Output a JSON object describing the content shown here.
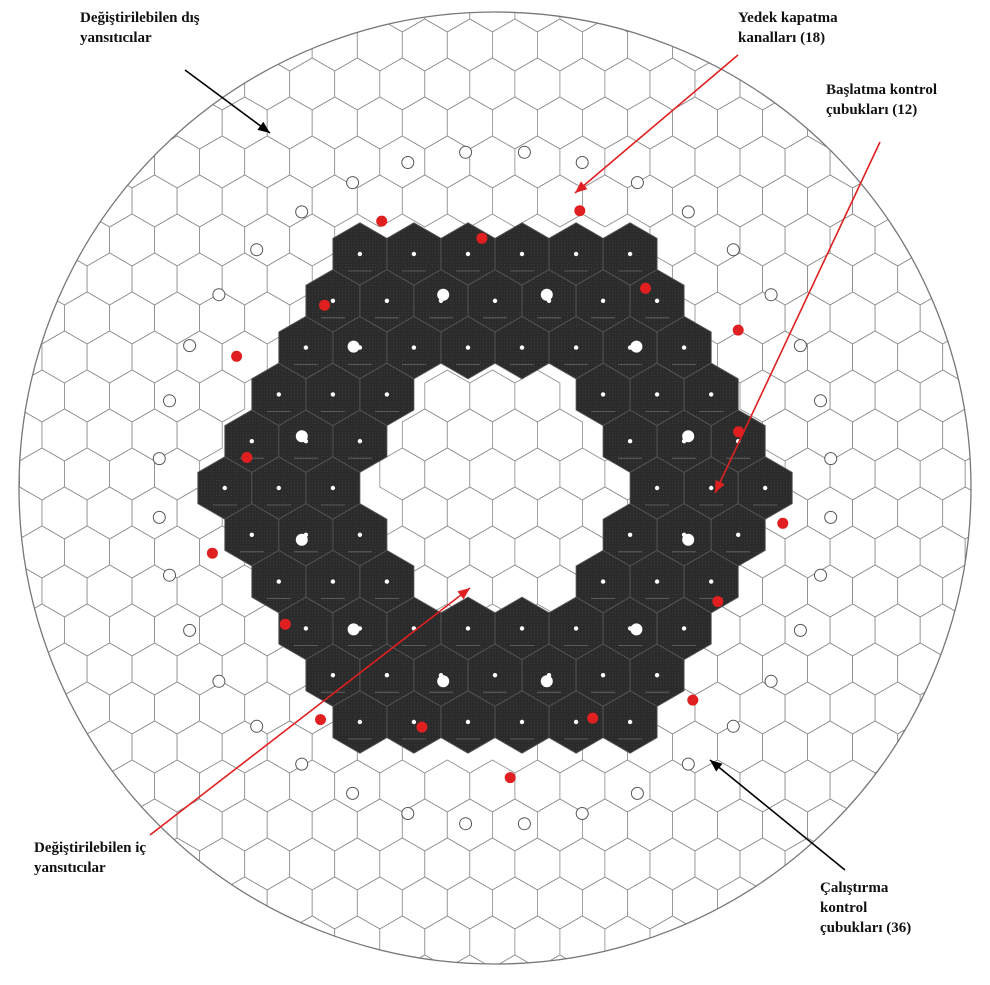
{
  "labels": {
    "outer_reflectors": [
      "Değiştirilebilen dış",
      "yansıtıcılar"
    ],
    "spare_shutdown": [
      "Yedek kapatma",
      "kanalları (18)"
    ],
    "startup_rods": [
      "Başlatma kontrol",
      "çubukları (12)"
    ],
    "inner_reflectors": [
      "Değiştirilebilen iç",
      "yansıtıcılar"
    ],
    "operating_rods": [
      "Çalıştırma",
      "kontrol",
      "çubukları (36)"
    ]
  },
  "colors": {
    "reflector_stroke": "#8a8a8a",
    "core_fill": "#2b2b2b",
    "core_stroke": "#555555",
    "channel_dot": "#ffffff",
    "red_channel": "#e02020",
    "black_arrow": "#000000",
    "red_arrow": "#e02020",
    "vessel_stroke": "#777777"
  },
  "icons": {
    "arrow": "arrow-head-icon",
    "channel": "circle-icon"
  }
}
